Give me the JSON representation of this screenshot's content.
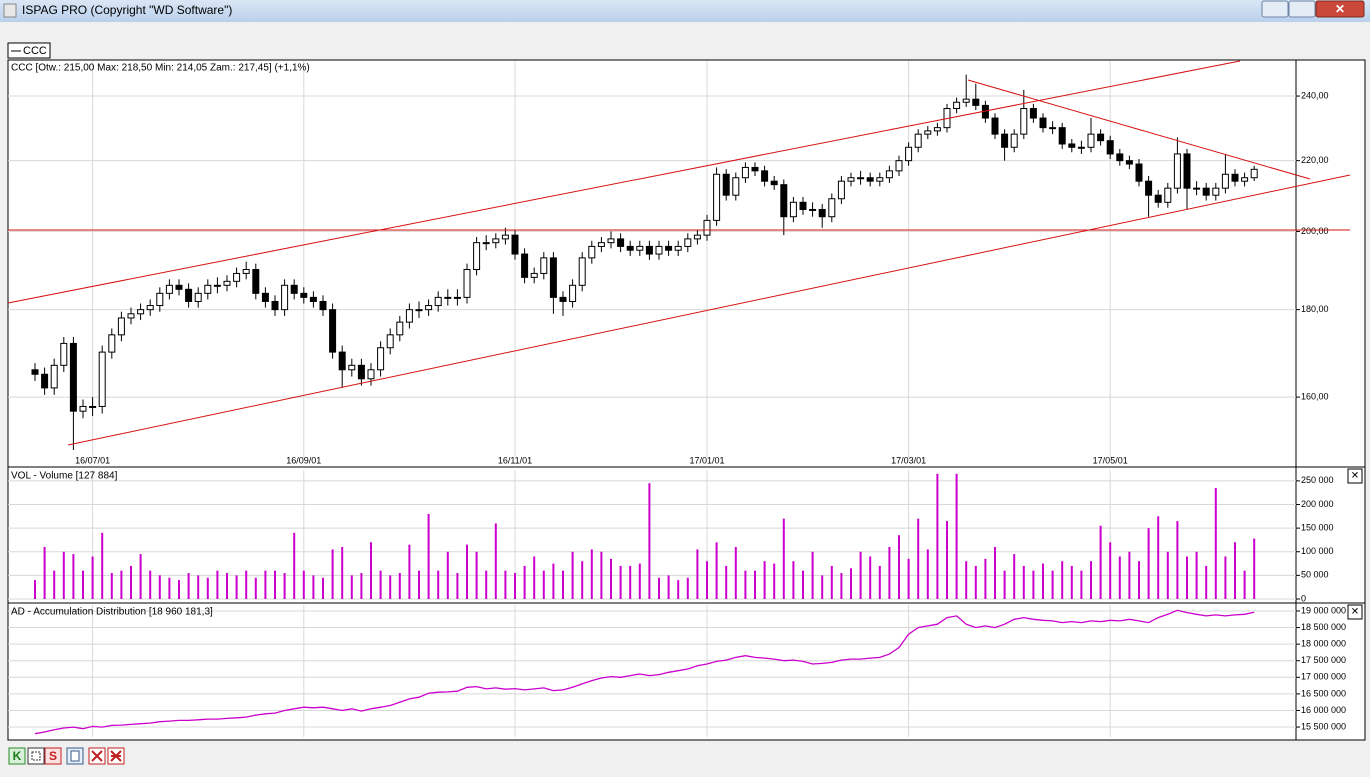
{
  "window": {
    "title": "ISPAG PRO (Copyright \"WD Software\")",
    "tab": "CCC",
    "toolbar": [
      "K",
      "S"
    ]
  },
  "chart_data": [
    {
      "type": "candlestick",
      "title": "CCC [Otw.: 215,00  Max: 218,50  Min: 214,05  Zam.: 217,45] (+1,1%)",
      "color": "#000000",
      "log": true,
      "grid": true,
      "open": [
        166,
        165,
        162,
        167,
        172,
        157,
        158,
        158,
        170,
        174,
        178,
        179,
        180,
        181,
        184,
        186,
        185,
        182,
        184,
        186,
        186,
        187,
        189,
        190,
        184,
        182,
        180,
        186,
        184,
        183,
        182,
        180,
        170,
        166,
        167,
        164,
        166,
        171,
        174,
        177,
        180,
        180,
        181,
        183,
        183,
        183,
        190,
        197,
        197,
        198,
        199,
        194,
        188,
        189,
        193,
        183,
        182,
        186,
        193,
        196,
        197,
        198,
        196,
        195,
        196,
        194,
        196,
        195,
        196,
        198,
        199,
        203,
        216,
        210,
        215,
        218,
        217,
        214,
        213,
        204,
        208,
        206,
        206,
        204,
        209,
        214,
        215,
        215,
        214,
        215,
        217,
        220,
        224,
        228,
        229,
        230,
        236,
        238,
        239,
        237,
        233,
        228,
        224,
        228,
        236,
        233,
        230,
        230,
        225,
        224,
        224,
        228,
        226,
        222,
        220,
        219,
        214,
        210,
        208,
        212,
        222,
        212,
        212,
        210,
        212,
        216,
        214,
        215
      ],
      "high": [
        167.5,
        166.5,
        168.5,
        173.5,
        173.5,
        159.5,
        160,
        171.5,
        175.5,
        179.5,
        180.5,
        181.5,
        182.5,
        185.5,
        187.5,
        187.5,
        186.5,
        185.5,
        187.5,
        188,
        188.5,
        190.5,
        192,
        191.5,
        185.5,
        183.5,
        187.5,
        187.5,
        185.5,
        184.5,
        183.5,
        181.5,
        171.5,
        168.5,
        168.5,
        167.5,
        172.5,
        175.5,
        178.5,
        181.5,
        182,
        182.5,
        184.5,
        185,
        185,
        191.5,
        198.5,
        199,
        199.5,
        201,
        200.5,
        195.5,
        190.5,
        194.5,
        194.5,
        184.5,
        187.5,
        194.5,
        197.5,
        198.5,
        200,
        199.5,
        197.5,
        197.5,
        197.5,
        197.5,
        197.5,
        197.5,
        199.5,
        200.5,
        204.5,
        218,
        217.5,
        216.5,
        219.5,
        219.5,
        218.5,
        215.5,
        214.5,
        209.5,
        209.5,
        208,
        207.5,
        210.5,
        215.5,
        216.5,
        217,
        216.5,
        216.5,
        218.5,
        221.5,
        225.5,
        229.5,
        230.5,
        231.5,
        237.5,
        239.5,
        247,
        244,
        238.5,
        234.5,
        229.5,
        229.5,
        242,
        237.5,
        234.5,
        232,
        231.5,
        226.5,
        226,
        233,
        229.5,
        227.5,
        223.5,
        221.5,
        220.5,
        215.5,
        211.5,
        213.5,
        227,
        223.5,
        214,
        213.5,
        213.5,
        222,
        217.5,
        216.5,
        218.5
      ],
      "low": [
        163.5,
        160.5,
        160.5,
        165.5,
        149,
        155.5,
        156,
        156.5,
        168.5,
        172.5,
        176.5,
        177.5,
        178.5,
        179.5,
        182.5,
        183.5,
        180.5,
        180.5,
        182.5,
        184,
        184.5,
        185.5,
        187.5,
        182.5,
        180.5,
        178.5,
        178.5,
        182.5,
        181.5,
        180.5,
        178.5,
        168.5,
        162,
        164.5,
        162.5,
        162.5,
        164.5,
        169.5,
        172.5,
        175.5,
        178,
        178.5,
        179.5,
        181,
        181,
        181.5,
        188.5,
        195,
        195.5,
        196.5,
        192.5,
        186.5,
        186.5,
        187.5,
        179,
        178.5,
        180.5,
        184.5,
        191.5,
        194.5,
        195.5,
        194.5,
        193.5,
        193.5,
        192.5,
        192.5,
        193.5,
        193.5,
        194.5,
        196.5,
        197.5,
        201.5,
        208.5,
        208.5,
        213.5,
        215.5,
        212.5,
        211.5,
        199,
        202.5,
        204.5,
        204,
        201,
        202.5,
        207.5,
        212.5,
        213,
        212.5,
        212.5,
        213.5,
        215.5,
        218.5,
        222.5,
        226.5,
        227.5,
        228.5,
        234.5,
        236.5,
        235.5,
        231.5,
        226.5,
        220,
        222.5,
        226.5,
        231.5,
        228.5,
        228,
        223.5,
        222.5,
        222,
        222.5,
        224.5,
        220.5,
        218.5,
        217.5,
        212.5,
        204,
        206.5,
        206.5,
        210.5,
        206,
        210,
        208.5,
        208.5,
        210.5,
        212.5,
        212.5,
        214.05
      ],
      "close": [
        165,
        162,
        167,
        172,
        157,
        158,
        158,
        170,
        174,
        178,
        179,
        180,
        181,
        184,
        186,
        185,
        182,
        184,
        186,
        186,
        187,
        189,
        190,
        184,
        182,
        180,
        186,
        184,
        183,
        182,
        180,
        170,
        166,
        167,
        164,
        166,
        171,
        174,
        177,
        180,
        180,
        181,
        183,
        183,
        183,
        190,
        197,
        197,
        198,
        199,
        194,
        188,
        189,
        193,
        183,
        182,
        186,
        193,
        196,
        197,
        198,
        196,
        195,
        196,
        194,
        196,
        195,
        196,
        198,
        199,
        203,
        216,
        210,
        215,
        218,
        217,
        214,
        213,
        204,
        208,
        206,
        206,
        204,
        209,
        214,
        215,
        215,
        214,
        215,
        217,
        220,
        224,
        228,
        229,
        230,
        236,
        238,
        239,
        237,
        233,
        228,
        224,
        228,
        236,
        233,
        230,
        230,
        225,
        224,
        224,
        228,
        226,
        222,
        220,
        219,
        214,
        210,
        208,
        212,
        222,
        212,
        212,
        210,
        212,
        216,
        214,
        215,
        217.45
      ],
      "xticks": [
        {
          "value": 6,
          "label": "16/07/01"
        },
        {
          "value": 28,
          "label": "16/09/01"
        },
        {
          "value": 50,
          "label": "16/11/01"
        },
        {
          "value": 70,
          "label": "17/01/01"
        },
        {
          "value": 91,
          "label": "17/03/01"
        },
        {
          "value": 112,
          "label": "17/05/01"
        }
      ],
      "ylim": [
        148.6,
        251.6
      ],
      "yticks": [
        {
          "value": 160,
          "label": "160,00"
        },
        {
          "value": 180,
          "label": "180,00"
        },
        {
          "value": 200,
          "label": "200,00"
        },
        {
          "value": 220,
          "label": "220,00"
        },
        {
          "value": 240,
          "label": "240,00"
        }
      ]
    },
    {
      "type": "bar",
      "title": "VOL - Volume [127 884]",
      "color": "#cc00cc",
      "values": [
        40000,
        110000,
        60000,
        100000,
        95000,
        60000,
        90000,
        140000,
        55000,
        60000,
        70000,
        95000,
        60000,
        50000,
        45000,
        40000,
        55000,
        50000,
        45000,
        60000,
        55000,
        50000,
        60000,
        45000,
        60000,
        60000,
        55000,
        140000,
        60000,
        50000,
        45000,
        105000,
        110000,
        50000,
        55000,
        120000,
        60000,
        50000,
        55000,
        115000,
        60000,
        180000,
        60000,
        100000,
        55000,
        115000,
        100000,
        60000,
        160000,
        60000,
        55000,
        70000,
        90000,
        60000,
        75000,
        60000,
        100000,
        80000,
        105000,
        100000,
        85000,
        70000,
        70000,
        75000,
        245000,
        45000,
        50000,
        40000,
        45000,
        105000,
        80000,
        120000,
        70000,
        110000,
        60000,
        60000,
        80000,
        75000,
        170000,
        80000,
        60000,
        100000,
        50000,
        70000,
        55000,
        65000,
        100000,
        90000,
        70000,
        110000,
        135000,
        85000,
        170000,
        105000,
        265000,
        165000,
        265000,
        80000,
        70000,
        85000,
        110000,
        60000,
        95000,
        70000,
        60000,
        75000,
        60000,
        80000,
        70000,
        60000,
        80000,
        155000,
        120000,
        90000,
        100000,
        80000,
        150000,
        175000,
        100000,
        165000,
        90000,
        100000,
        70000,
        235000,
        90000,
        120000,
        60000,
        127884
      ],
      "ylim": [
        0,
        273000
      ],
      "yticks": [
        0,
        {
          "value": 50000,
          "label": "50 000"
        },
        {
          "value": 100000,
          "label": "100 000"
        },
        {
          "value": 150000,
          "label": "150 000"
        },
        {
          "value": 200000,
          "label": "200 000"
        },
        {
          "value": 250000,
          "label": "250 000"
        }
      ]
    },
    {
      "type": "line",
      "title": "AD - Accumulation Distribution [18 960 181,3]",
      "color": "#cc00cc",
      "values": [
        15300000,
        15350000,
        15420000,
        15470000,
        15500000,
        15450000,
        15520000,
        15500000,
        15550000,
        15560000,
        15580000,
        15600000,
        15620000,
        15660000,
        15680000,
        15700000,
        15700000,
        15720000,
        15740000,
        15740000,
        15760000,
        15780000,
        15800000,
        15860000,
        15900000,
        15920000,
        16000000,
        16050000,
        16100000,
        16080000,
        16100000,
        16050000,
        16000000,
        16050000,
        15980000,
        16050000,
        16100000,
        16150000,
        16250000,
        16350000,
        16400000,
        16520000,
        16550000,
        16560000,
        16580000,
        16700000,
        16720000,
        16650000,
        16680000,
        16640000,
        16660000,
        16620000,
        16650000,
        16680000,
        16600000,
        16620000,
        16700000,
        16800000,
        16900000,
        16980000,
        17020000,
        17000000,
        17050000,
        17100000,
        17050000,
        17080000,
        17150000,
        17200000,
        17250000,
        17350000,
        17400000,
        17480000,
        17520000,
        17600000,
        17650000,
        17600000,
        17580000,
        17550000,
        17500000,
        17520000,
        17480000,
        17400000,
        17420000,
        17450000,
        17520000,
        17550000,
        17550000,
        17580000,
        17600000,
        17700000,
        17900000,
        18300000,
        18500000,
        18550000,
        18600000,
        18800000,
        18850000,
        18600000,
        18500000,
        18550000,
        18500000,
        18600000,
        18750000,
        18800000,
        18750000,
        18720000,
        18700000,
        18650000,
        18680000,
        18650000,
        18700000,
        18680000,
        18720000,
        18700000,
        18750000,
        18700000,
        18650000,
        18800000,
        18900000,
        19020000,
        18950000,
        18900000,
        18850000,
        18880000,
        18850000,
        18880000,
        18900000,
        18960181.3
      ],
      "ylim": [
        15200000,
        19180000
      ],
      "yticks": [
        {
          "value": 15500000,
          "label": "15 500 000"
        },
        {
          "value": 16000000,
          "label": "16 000 000"
        },
        {
          "value": 16500000,
          "label": "16 500 000"
        },
        {
          "value": 17000000,
          "label": "17 000 000"
        },
        {
          "value": 17500000,
          "label": "17 500 000"
        },
        {
          "value": 18000000,
          "label": "18 000 000"
        },
        {
          "value": 18500000,
          "label": "18 500 000"
        },
        {
          "value": 19000000,
          "label": "19 000 000"
        }
      ]
    }
  ]
}
